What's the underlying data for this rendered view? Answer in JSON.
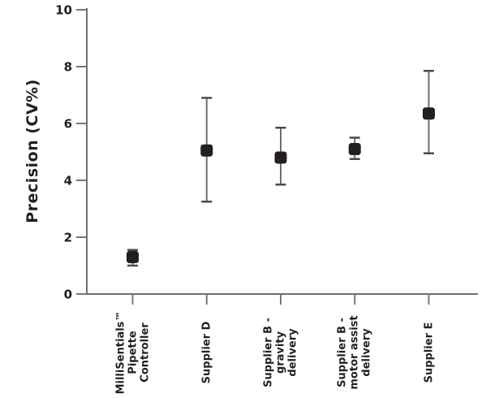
{
  "figure": {
    "background": "#ffffff",
    "text_color": "#231f20",
    "axis_color": "#6d6e71",
    "tick_color": "#77787b"
  },
  "chart_data": {
    "type": "scatter",
    "title": "",
    "xlabel": "",
    "ylabel": "Precision (CV%)",
    "ylim": [
      0,
      10
    ],
    "yticks": [
      0,
      2,
      4,
      6,
      8,
      10
    ],
    "grid": false,
    "legend_position": "none",
    "categories": [
      "MilliSentials™ Pipette Controller",
      "Supplier D",
      "Supplier B - gravity delivery",
      "Supplier B - motor assist delivery",
      "Supplier E"
    ],
    "category_label_lines": [
      [
        "MilliSentials™",
        "Pipette",
        "Controller"
      ],
      [
        "Supplier D"
      ],
      [
        "Supplier B -",
        "gravity",
        "delivery"
      ],
      [
        "Supplier B -",
        "motor assist",
        "delivery"
      ],
      [
        "Supplier E"
      ]
    ],
    "series": [
      {
        "name": "Precision (CV%)",
        "marker": "filled-square",
        "marker_color": "#231f20",
        "values": [
          1.3,
          5.05,
          4.8,
          5.1,
          6.35
        ],
        "error_low": [
          1.0,
          3.25,
          3.85,
          4.75,
          4.95
        ],
        "error_high": [
          1.55,
          6.9,
          5.85,
          5.5,
          7.85
        ]
      }
    ],
    "error_bars": {
      "line_color": "#6d6e71",
      "cap_color": "#4a4a4c"
    }
  }
}
